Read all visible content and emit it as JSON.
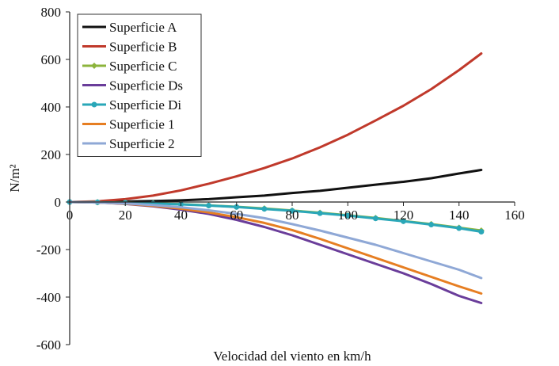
{
  "chart_data": {
    "type": "line",
    "title": "",
    "xlabel": "Velocidad del viento en km/h",
    "ylabel": "N/m²",
    "xlim": [
      0,
      160
    ],
    "ylim": [
      -600,
      800
    ],
    "x_ticks": [
      0,
      20,
      40,
      60,
      80,
      100,
      120,
      140,
      160
    ],
    "y_ticks": [
      800,
      600,
      400,
      200,
      0,
      -200,
      -400,
      -600
    ],
    "grid": false,
    "legend_position": "top-left",
    "series": [
      {
        "name": "Superficie A",
        "color": "#111111",
        "marker": "none",
        "x": [
          0,
          10,
          20,
          30,
          40,
          50,
          60,
          70,
          80,
          90,
          100,
          110,
          120,
          130,
          140,
          148
        ],
        "y": [
          0,
          1,
          2,
          4,
          7,
          12,
          20,
          27,
          38,
          47,
          60,
          73,
          85,
          100,
          120,
          135
        ]
      },
      {
        "name": "Superficie B",
        "color": "#c0392b",
        "marker": "none",
        "x": [
          0,
          10,
          20,
          30,
          40,
          50,
          60,
          70,
          80,
          90,
          100,
          110,
          120,
          130,
          140,
          148
        ],
        "y": [
          0,
          3,
          12,
          27,
          49,
          77,
          108,
          143,
          183,
          230,
          283,
          343,
          405,
          475,
          555,
          625
        ]
      },
      {
        "name": "Superficie C",
        "color": "#8cb43c",
        "marker": "diamond",
        "x": [
          0,
          10,
          20,
          30,
          40,
          50,
          60,
          70,
          80,
          90,
          100,
          110,
          120,
          130,
          140,
          148
        ],
        "y": [
          0,
          -1,
          -2,
          -5,
          -9,
          -14,
          -20,
          -27,
          -36,
          -45,
          -56,
          -67,
          -80,
          -93,
          -108,
          -120
        ]
      },
      {
        "name": "Superficie Ds",
        "color": "#6a3d9a",
        "marker": "none",
        "x": [
          0,
          10,
          20,
          30,
          40,
          50,
          60,
          70,
          80,
          90,
          100,
          110,
          120,
          130,
          140,
          148
        ],
        "y": [
          0,
          -2,
          -8,
          -18,
          -32,
          -50,
          -75,
          -105,
          -140,
          -180,
          -220,
          -260,
          -300,
          -345,
          -395,
          -425
        ]
      },
      {
        "name": "Superficie Di",
        "color": "#2aa7b8",
        "marker": "circle",
        "x": [
          0,
          10,
          20,
          30,
          40,
          50,
          60,
          70,
          80,
          90,
          100,
          110,
          120,
          130,
          140,
          148
        ],
        "y": [
          0,
          -1,
          -3,
          -6,
          -10,
          -15,
          -21,
          -29,
          -37,
          -47,
          -57,
          -69,
          -81,
          -95,
          -110,
          -125
        ]
      },
      {
        "name": "Superficie 1",
        "color": "#e67e22",
        "marker": "none",
        "x": [
          0,
          10,
          20,
          30,
          40,
          50,
          60,
          70,
          80,
          90,
          100,
          110,
          120,
          130,
          140,
          148
        ],
        "y": [
          0,
          -2,
          -7,
          -16,
          -28,
          -44,
          -64,
          -88,
          -118,
          -155,
          -195,
          -235,
          -275,
          -315,
          -355,
          -385
        ]
      },
      {
        "name": "Superficie 2",
        "color": "#8fa8d6",
        "marker": "none",
        "x": [
          0,
          10,
          20,
          30,
          40,
          50,
          60,
          70,
          80,
          90,
          100,
          110,
          120,
          130,
          140,
          148
        ],
        "y": [
          0,
          -2,
          -6,
          -13,
          -22,
          -35,
          -50,
          -68,
          -93,
          -120,
          -150,
          -180,
          -215,
          -250,
          -285,
          -320
        ]
      }
    ]
  }
}
